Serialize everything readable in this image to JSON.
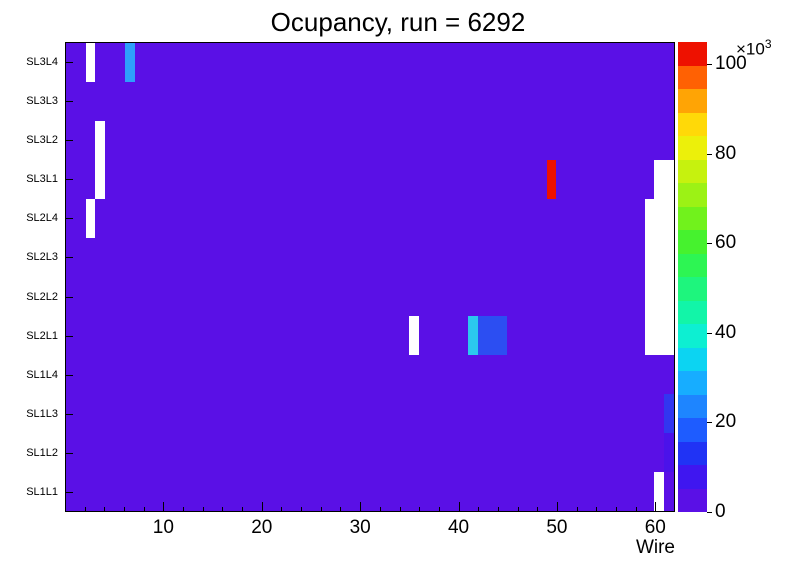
{
  "chart_data": {
    "type": "heatmap",
    "title": "Ocupancy, run = 6292",
    "xlabel": "Wire",
    "x_min": 0,
    "x_max": 62,
    "x_major_ticks": [
      10,
      20,
      30,
      40,
      50,
      60
    ],
    "x_minor_tick_step": 2,
    "rows_bottom_to_top": [
      "SL1L1",
      "SL1L2",
      "SL1L3",
      "SL1L4",
      "SL2L1",
      "SL2L2",
      "SL2L3",
      "SL2L4",
      "SL3L1",
      "SL3L2",
      "SL3L3",
      "SL3L4"
    ],
    "background_color": "#5a10e6",
    "colorbar": {
      "ticks_k": [
        0,
        20,
        40,
        60,
        80,
        100
      ],
      "axis_max_k": 105,
      "multiplier_base": "×10",
      "multiplier_exp": "3",
      "colors_bottom_to_top": [
        "#5a10e6",
        "#3f16f0",
        "#2033f5",
        "#1e5cff",
        "#1e85ff",
        "#17adff",
        "#0cd4f2",
        "#0defd2",
        "#12f5a8",
        "#1ef57d",
        "#2df553",
        "#46f22e",
        "#71f21c",
        "#9cf215",
        "#c6f20e",
        "#ecf00a",
        "#ffd908",
        "#ffa405",
        "#ff6103",
        "#ee1100"
      ]
    },
    "cells": [
      {
        "row": "SL3L4",
        "wire": 3,
        "span": 1,
        "value_k": null,
        "color": "#ffffff",
        "kind": "empty"
      },
      {
        "row": "SL3L4",
        "wire": 7,
        "span": 1,
        "value_k": 25,
        "color": "#2e9efc",
        "kind": "hot"
      },
      {
        "row": "SL3L2",
        "wire": 4,
        "span": 1,
        "value_k": null,
        "color": "#ffffff",
        "kind": "empty"
      },
      {
        "row": "SL3L1",
        "wire": 4,
        "span": 1,
        "value_k": null,
        "color": "#ffffff",
        "kind": "empty"
      },
      {
        "row": "SL2L4",
        "wire": 3,
        "span": 1,
        "value_k": null,
        "color": "#ffffff",
        "kind": "empty"
      },
      {
        "row": "SL3L1",
        "wire": 50,
        "span": 1,
        "value_k": 100,
        "color": "#ee1100",
        "kind": "hot"
      },
      {
        "row": "SL3L1",
        "wire": 61,
        "span": 2,
        "value_k": null,
        "color": "#ffffff",
        "kind": "empty"
      },
      {
        "row": "SL2L4",
        "wire": 60,
        "span": 3,
        "value_k": null,
        "color": "#ffffff",
        "kind": "empty"
      },
      {
        "row": "SL2L3",
        "wire": 60,
        "span": 3,
        "value_k": null,
        "color": "#ffffff",
        "kind": "empty"
      },
      {
        "row": "SL2L2",
        "wire": 60,
        "span": 3,
        "value_k": null,
        "color": "#ffffff",
        "kind": "empty"
      },
      {
        "row": "SL2L1",
        "wire": 60,
        "span": 3,
        "value_k": null,
        "color": "#ffffff",
        "kind": "empty"
      },
      {
        "row": "SL2L1",
        "wire": 36,
        "span": 1,
        "value_k": null,
        "color": "#ffffff",
        "kind": "empty"
      },
      {
        "row": "SL2L1",
        "wire": 42,
        "span": 1,
        "value_k": 35,
        "color": "#2bc8ee",
        "kind": "hot"
      },
      {
        "row": "SL2L1",
        "wire": 43,
        "span": 3,
        "value_k": 16,
        "color": "#2c4ef2",
        "kind": "hot"
      },
      {
        "row": "SL1L3",
        "wire": 62,
        "span": 1,
        "value_k": 12,
        "color": "#3236f0",
        "kind": "hot"
      },
      {
        "row": "SL1L2",
        "wire": 62,
        "span": 1,
        "value_k": 6,
        "color": "#4b12ea",
        "kind": "hot"
      },
      {
        "row": "SL1L1",
        "wire": 61,
        "span": 1,
        "value_k": null,
        "color": "#ffffff",
        "kind": "empty"
      }
    ]
  }
}
